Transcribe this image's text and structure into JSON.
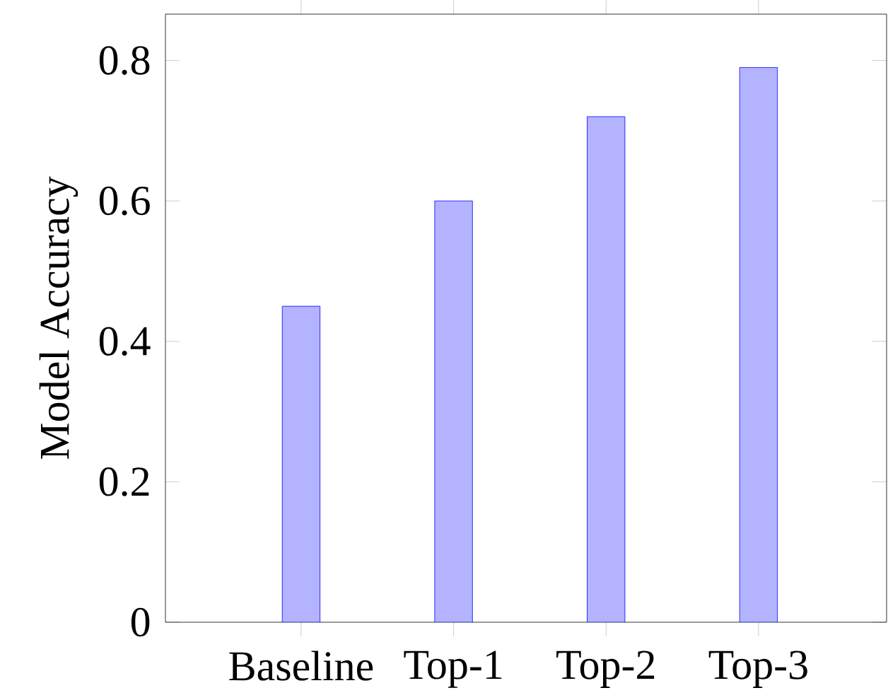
{
  "chart_data": {
    "type": "bar",
    "ylabel": "Model Accuracy",
    "categories": [
      "Baseline",
      "Top-1",
      "Top-2",
      "Top-3"
    ],
    "values": [
      0.45,
      0.6,
      0.72,
      0.79
    ],
    "color": "#b3b3ff",
    "ylim": [
      0,
      0.866
    ],
    "yticks": [
      0,
      0.2,
      0.4,
      0.6,
      0.8
    ],
    "grid": false
  }
}
